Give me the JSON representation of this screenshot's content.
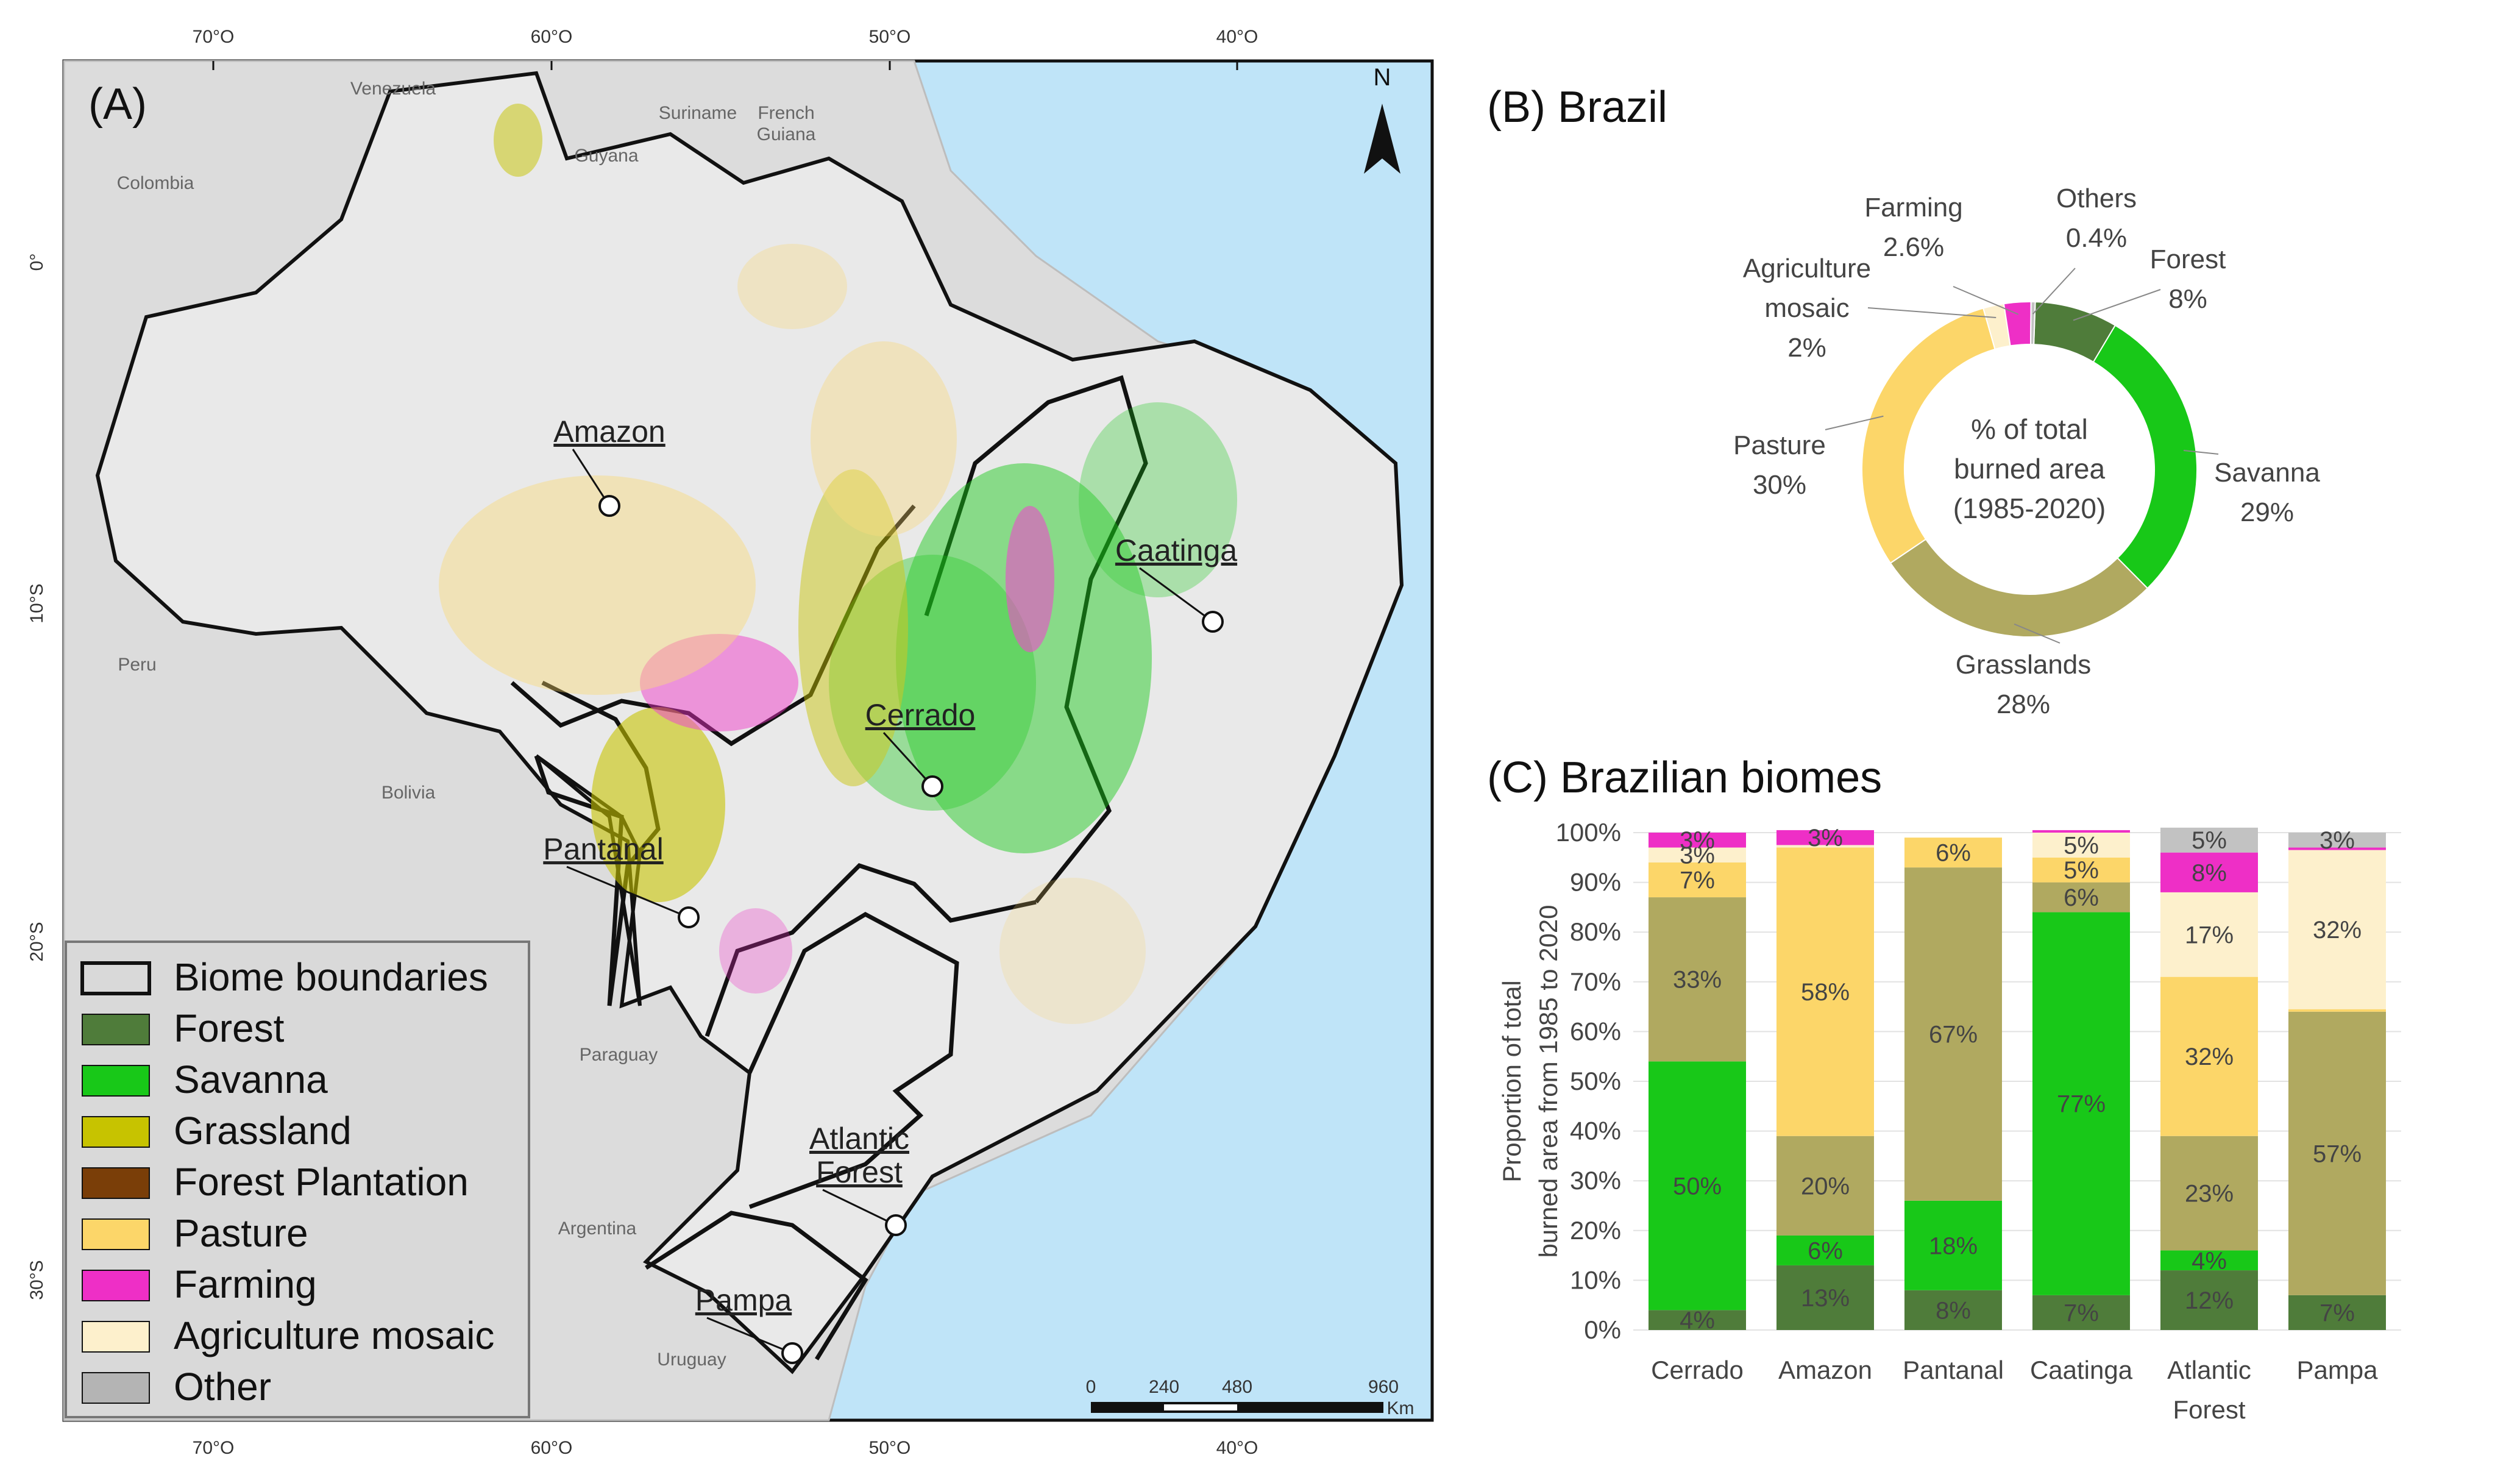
{
  "colors": {
    "Forest": "#4f7c3a",
    "Savanna": "#18c818",
    "Grassland": "#c7c300",
    "Forest Plantation": "#7a3e08",
    "Pasture": "#fcd669",
    "Farming": "#ee2fc6",
    "Agriculture mosaic": "#fdf0cc",
    "Other": "#b4b4b4",
    "Grasslands": "#b0a960",
    "Others": "#c2c2c2",
    "ocean": "#bfe4f8",
    "land": "#dcdcdc",
    "brazil": "#e8e8e8"
  },
  "map": {
    "panel_label": "(A)",
    "north_label": "N",
    "legend": [
      {
        "label": "Biome boundaries",
        "color_key": "none"
      },
      {
        "label": "Forest",
        "color_key": "Forest"
      },
      {
        "label": "Savanna",
        "color_key": "Savanna"
      },
      {
        "label": "Grassland",
        "color_key": "Grassland"
      },
      {
        "label": "Forest Plantation",
        "color_key": "Forest Plantation"
      },
      {
        "label": "Pasture",
        "color_key": "Pasture"
      },
      {
        "label": "Farming",
        "color_key": "Farming"
      },
      {
        "label": "Agriculture mosaic",
        "color_key": "Agriculture mosaic"
      },
      {
        "label": "Other",
        "color_key": "Other"
      }
    ],
    "biomes": [
      "Amazon",
      "Caatinga",
      "Cerrado",
      "Pantanal",
      "Atlantic Forest",
      "Pampa"
    ],
    "countries": [
      "Venezuela",
      "Colombia",
      "Guyana",
      "Suriname",
      "French Guiana",
      "Peru",
      "Bolivia",
      "Paraguay",
      "Argentina",
      "Uruguay"
    ],
    "lon_labels": [
      "70°O",
      "60°O",
      "50°O",
      "40°O"
    ],
    "lat_labels": [
      "0°",
      "10°S",
      "20°S",
      "30°S"
    ],
    "scale": {
      "ticks": [
        "0",
        "240",
        "480",
        "960"
      ],
      "unit": "Km"
    }
  },
  "chart_data": [
    {
      "type": "pie",
      "title": "(B)  Brazil",
      "center_text": [
        "% of total",
        "burned area",
        "(1985-2020)"
      ],
      "slices": [
        {
          "label": "Forest",
          "value": 8,
          "display": "8%",
          "color_key": "Forest"
        },
        {
          "label": "Savanna",
          "value": 29,
          "display": "29%",
          "color_key": "Savanna"
        },
        {
          "label": "Grasslands",
          "value": 28,
          "display": "28%",
          "color_key": "Grasslands"
        },
        {
          "label": "Pasture",
          "value": 30,
          "display": "30%",
          "color_key": "Pasture"
        },
        {
          "label": "Agriculture mosaic",
          "value": 2,
          "display": "2%",
          "color_key": "Agriculture mosaic"
        },
        {
          "label": "Farming",
          "value": 2.6,
          "display": "2.6%",
          "color_key": "Farming"
        },
        {
          "label": "Others",
          "value": 0.4,
          "display": "0.4%",
          "color_key": "Others"
        }
      ]
    },
    {
      "type": "bar",
      "stacked": true,
      "title": "(C) Brazilian biomes",
      "ylabel": "Proportion of total burned area from 1985 to 2020",
      "ylabel_lines": [
        "Proportion of total",
        "burned area from 1985 to 2020"
      ],
      "ylim": [
        0,
        100
      ],
      "yticks": [
        "0%",
        "10%",
        "20%",
        "30%",
        "40%",
        "50%",
        "60%",
        "70%",
        "80%",
        "90%",
        "100%"
      ],
      "categories": [
        "Cerrado",
        "Amazon",
        "Pantanal",
        "Caatinga",
        "Atlantic Forest",
        "Pampa"
      ],
      "category_lines": [
        [
          "Cerrado"
        ],
        [
          "Amazon"
        ],
        [
          "Pantanal"
        ],
        [
          "Caatinga"
        ],
        [
          "Atlantic",
          "Forest"
        ],
        [
          "Pampa"
        ]
      ],
      "series": [
        {
          "name": "Forest",
          "color_key": "Forest",
          "values": [
            4,
            13,
            8,
            7,
            12,
            7
          ],
          "labels": [
            "4%",
            "13%",
            "8%",
            "7%",
            "12%",
            "7%"
          ]
        },
        {
          "name": "Savanna",
          "color_key": "Savanna",
          "values": [
            50,
            6,
            18,
            77,
            4,
            0
          ],
          "labels": [
            "50%",
            "6%",
            "18%",
            "77%",
            "4%",
            ""
          ]
        },
        {
          "name": "Grasslands",
          "color_key": "Grasslands",
          "values": [
            33,
            20,
            67,
            6,
            23,
            57
          ],
          "labels": [
            "33%",
            "20%",
            "67%",
            "6%",
            "23%",
            "57%"
          ]
        },
        {
          "name": "Pasture",
          "color_key": "Pasture",
          "values": [
            7,
            58,
            6,
            5,
            32,
            0.5
          ],
          "labels": [
            "7%",
            "58%",
            "6%",
            "5%",
            "32%",
            ""
          ]
        },
        {
          "name": "Agriculture mosaic",
          "color_key": "Agriculture mosaic",
          "values": [
            3,
            0.5,
            0,
            5,
            17,
            32
          ],
          "labels": [
            "3%",
            "",
            "",
            "5%",
            "17%",
            "32%"
          ]
        },
        {
          "name": "Farming",
          "color_key": "Farming",
          "values": [
            3,
            3,
            0,
            0.5,
            8,
            0.5
          ],
          "labels": [
            "3%",
            "3%",
            "",
            "",
            "8%",
            ""
          ]
        },
        {
          "name": "Others",
          "color_key": "Others",
          "values": [
            0,
            0,
            0,
            0,
            5,
            3
          ],
          "labels": [
            "",
            "",
            "",
            "",
            "5%",
            "3%"
          ]
        }
      ]
    }
  ]
}
